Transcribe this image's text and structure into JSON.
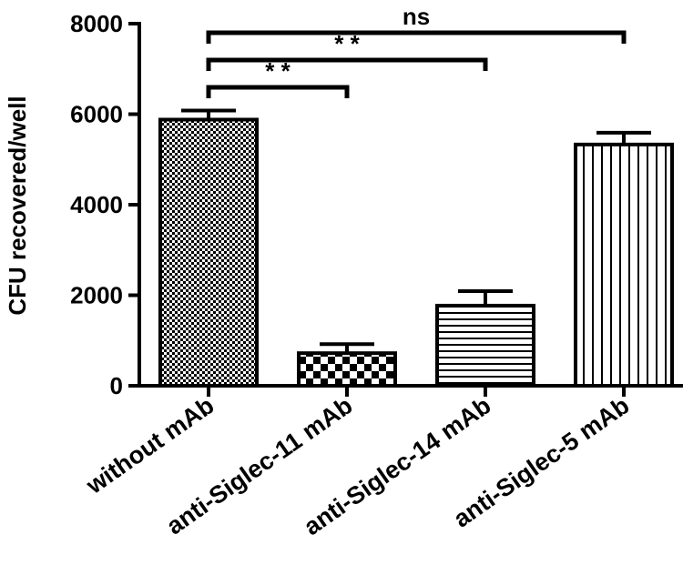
{
  "chart_data": {
    "type": "bar",
    "categories": [
      "without mAb",
      "anti-Siglec-11 mAb",
      "anti-Siglec-14 mAb",
      "anti-Siglec-5 mAb"
    ],
    "values": [
      5880,
      720,
      1770,
      5330
    ],
    "errors": [
      200,
      200,
      320,
      260
    ],
    "patterns": [
      "checker-fine",
      "checker-coarse",
      "horizontal-stripes",
      "vertical-stripes"
    ],
    "ylabel": "CFU recovered/well",
    "xlabel": "",
    "title": "",
    "ylim": [
      0,
      8000
    ],
    "yticks": [
      0,
      2000,
      4000,
      6000,
      8000
    ],
    "ytick_labels": [
      "0",
      "2000",
      "4000",
      "6000",
      "8000"
    ],
    "grid": false,
    "significance": [
      {
        "from": 0,
        "to": 1,
        "label": "* *"
      },
      {
        "from": 0,
        "to": 2,
        "label": "* *"
      },
      {
        "from": 0,
        "to": 3,
        "label": "ns"
      }
    ],
    "colors": {
      "bar_fill": "#ffffff",
      "stroke": "#000000"
    }
  }
}
